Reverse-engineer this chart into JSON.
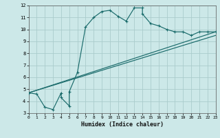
{
  "title": "",
  "xlabel": "Humidex (Indice chaleur)",
  "bg_color": "#cce8e8",
  "grid_color": "#aacccc",
  "line_color": "#1a6b6b",
  "xlim": [
    0,
    23
  ],
  "ylim": [
    3,
    12
  ],
  "xticks": [
    0,
    1,
    2,
    3,
    4,
    5,
    6,
    7,
    8,
    9,
    10,
    11,
    12,
    13,
    14,
    15,
    16,
    17,
    18,
    19,
    20,
    21,
    22,
    23
  ],
  "yticks": [
    3,
    4,
    5,
    6,
    7,
    8,
    9,
    10,
    11,
    12
  ],
  "line1_x": [
    0,
    1,
    2,
    3,
    4,
    4,
    5,
    5,
    6,
    7,
    8,
    9,
    10,
    11,
    12,
    13,
    14,
    14,
    15,
    16,
    17,
    18,
    19,
    20,
    21,
    22,
    23
  ],
  "line1_y": [
    4.7,
    4.6,
    3.5,
    3.3,
    4.7,
    4.3,
    3.6,
    4.8,
    6.4,
    10.2,
    11.0,
    11.5,
    11.6,
    11.1,
    10.7,
    11.8,
    11.8,
    11.3,
    10.5,
    10.3,
    10.0,
    9.8,
    9.8,
    9.5,
    9.8,
    9.8,
    9.8
  ],
  "line2_x": [
    0,
    23
  ],
  "line2_y": [
    4.7,
    9.8
  ],
  "line3_x": [
    0,
    23
  ],
  "line3_y": [
    4.7,
    9.5
  ]
}
